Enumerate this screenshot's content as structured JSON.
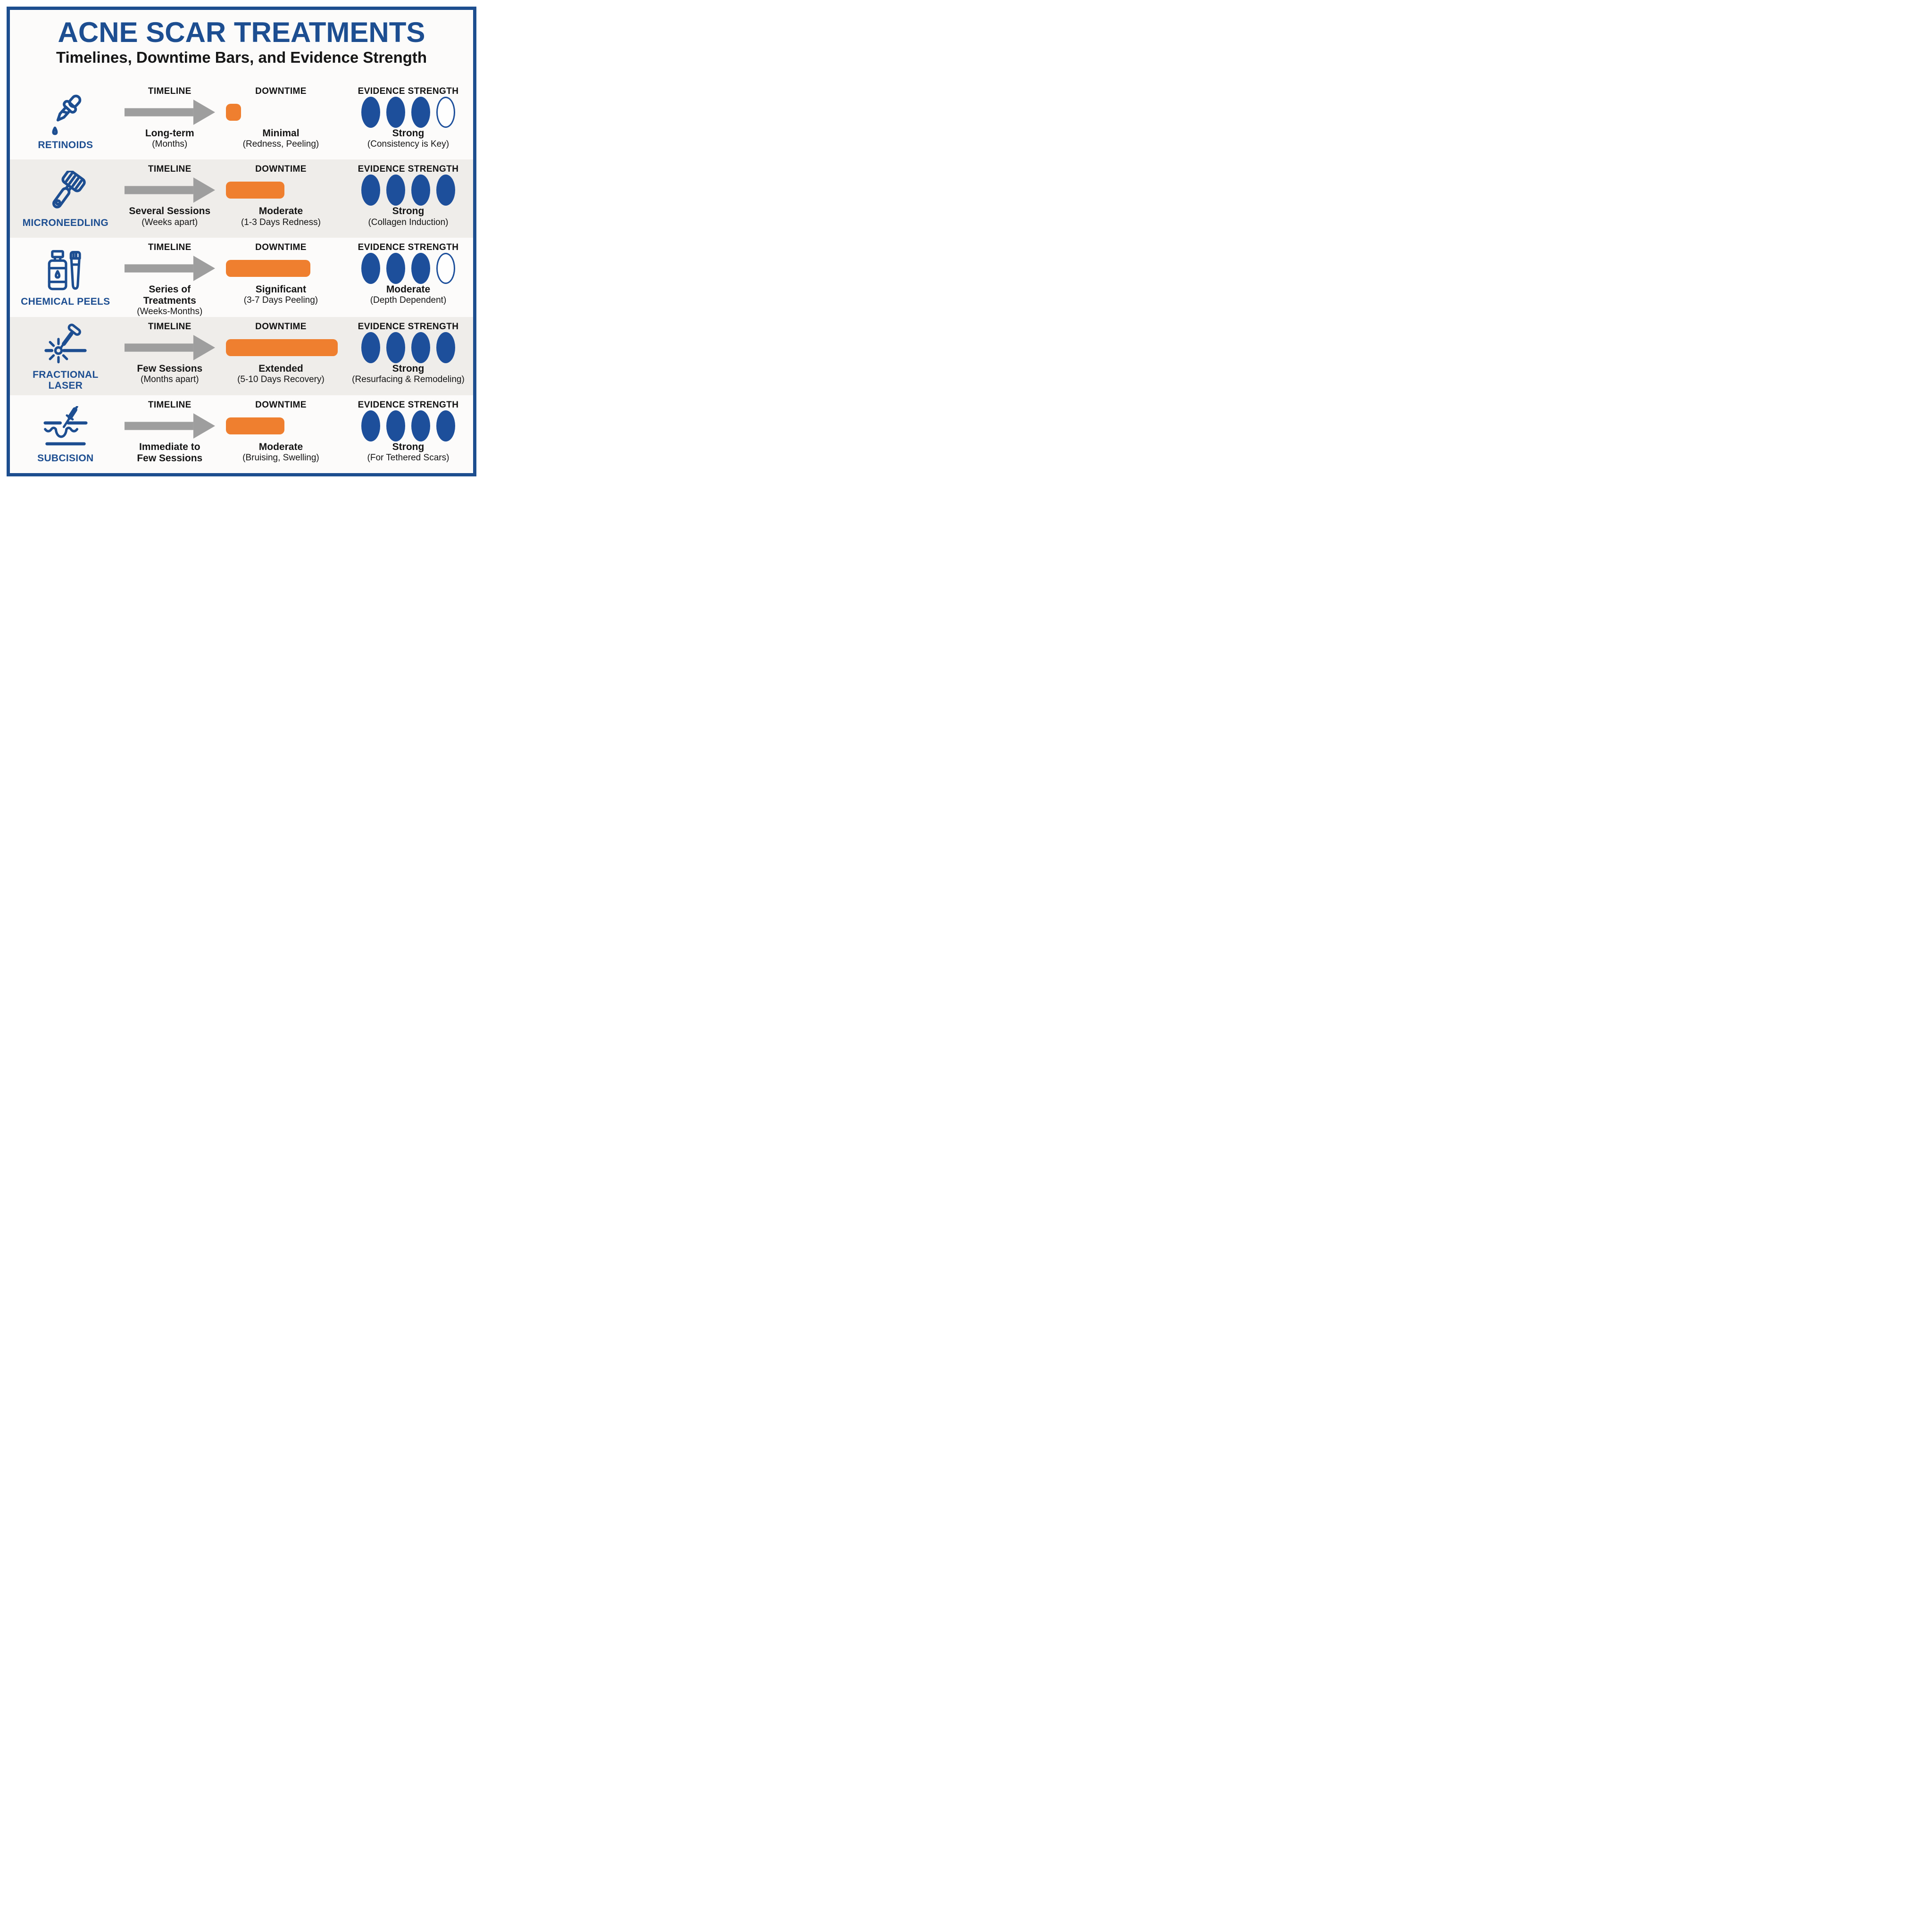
{
  "title": "ACNE SCAR TREATMENTS",
  "subtitle": "Timelines, Downtime Bars, and Evidence Strength",
  "colors": {
    "primary_blue": "#1d4e91",
    "accent_orange": "#ef7f2f",
    "arrow_gray": "#9e9e9e",
    "alt_row_bg": "#efedea",
    "frame_border_blue": "#1d4e8f",
    "text_black": "#141414"
  },
  "rows": [
    {
      "name": "RETINOIDS",
      "icon": "dropper-icon",
      "timeline": {
        "header": "TIMELINE",
        "value": "Long-term",
        "detail": "(Months)"
      },
      "downtime": {
        "header": "DOWNTIME",
        "value": "Minimal",
        "detail": "(Redness, Peeling)",
        "bar_pct": 13
      },
      "evidence": {
        "header": "EVIDENCE STRENGTH",
        "value": "Strong",
        "detail": "(Consistency is Key)",
        "dots_filled": 3,
        "dots_total": 4
      }
    },
    {
      "name": "MICRONEEDLING",
      "icon": "derma-roller-icon",
      "timeline": {
        "header": "TIMELINE",
        "value": "Several Sessions",
        "detail": "(Weeks apart)"
      },
      "downtime": {
        "header": "DOWNTIME",
        "value": "Moderate",
        "detail": "(1-3 Days Redness)",
        "bar_pct": 50
      },
      "evidence": {
        "header": "EVIDENCE STRENGTH",
        "value": "Strong",
        "detail": "(Collagen Induction)",
        "dots_filled": 4,
        "dots_total": 4
      }
    },
    {
      "name": "CHEMICAL PEELS",
      "icon": "bottle-brush-icon",
      "timeline": {
        "header": "TIMELINE",
        "value": "Series of Treatments",
        "detail": "(Weeks-Months)"
      },
      "downtime": {
        "header": "DOWNTIME",
        "value": "Significant",
        "detail": "(3-7 Days Peeling)",
        "bar_pct": 72
      },
      "evidence": {
        "header": "EVIDENCE STRENGTH",
        "value": "Moderate",
        "detail": "(Depth Dependent)",
        "dots_filled": 3,
        "dots_total": 4
      }
    },
    {
      "name": "FRACTIONAL\nLASER",
      "icon": "laser-icon",
      "timeline": {
        "header": "TIMELINE",
        "value": "Few Sessions",
        "detail": "(Months apart)"
      },
      "downtime": {
        "header": "DOWNTIME",
        "value": "Extended",
        "detail": "(5-10 Days Recovery)",
        "bar_pct": 95
      },
      "evidence": {
        "header": "EVIDENCE STRENGTH",
        "value": "Strong",
        "detail": "(Resurfacing & Remodeling)",
        "dots_filled": 4,
        "dots_total": 4
      }
    },
    {
      "name": "SUBCISION",
      "icon": "needle-skin-icon",
      "timeline": {
        "header": "TIMELINE",
        "value": "Immediate to\nFew Sessions",
        "detail": ""
      },
      "downtime": {
        "header": "DOWNTIME",
        "value": "Moderate",
        "detail": "(Bruising, Swelling)",
        "bar_pct": 50
      },
      "evidence": {
        "header": "EVIDENCE STRENGTH",
        "value": "Strong",
        "detail": "(For Tethered Scars)",
        "dots_filled": 4,
        "dots_total": 4
      }
    }
  ]
}
